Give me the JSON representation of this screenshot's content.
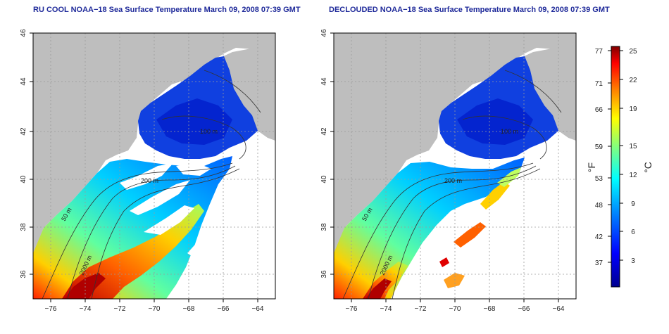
{
  "panels": [
    {
      "title": "RU COOL NOAA−18 Sea Surface Temperature March 09, 2008 07:39 GMT"
    },
    {
      "title": "DECLOUDED NOAA−18 Sea Surface Temperature March 09, 2008 07:39 GMT"
    }
  ],
  "axes": {
    "lon_ticks": [
      "−76",
      "−74",
      "−72",
      "−70",
      "−68",
      "−66",
      "−64"
    ],
    "lat_ticks": [
      "36",
      "38",
      "40",
      "42",
      "44",
      "46"
    ],
    "lon_range": [
      -77,
      -63
    ],
    "lat_range": [
      35,
      46
    ]
  },
  "contour_labels": [
    "50 m",
    "200 m",
    "2000 m",
    "100 m"
  ],
  "colorbar": {
    "f_label": "°F",
    "c_label": "°C",
    "f_ticks": [
      "77",
      "71",
      "66",
      "59",
      "53",
      "48",
      "42",
      "37"
    ],
    "c_ticks": [
      "25",
      "22",
      "19",
      "15",
      "12",
      "9",
      "6",
      "3"
    ],
    "colors": [
      "#00008f",
      "#0000ff",
      "#0080ff",
      "#00ffff",
      "#80ff80",
      "#ffff00",
      "#ff8000",
      "#ff0000",
      "#800000"
    ]
  },
  "colors": {
    "land": "#bebebe",
    "title": "#1f2a9a",
    "ocean_nodata": "#ffffff"
  }
}
